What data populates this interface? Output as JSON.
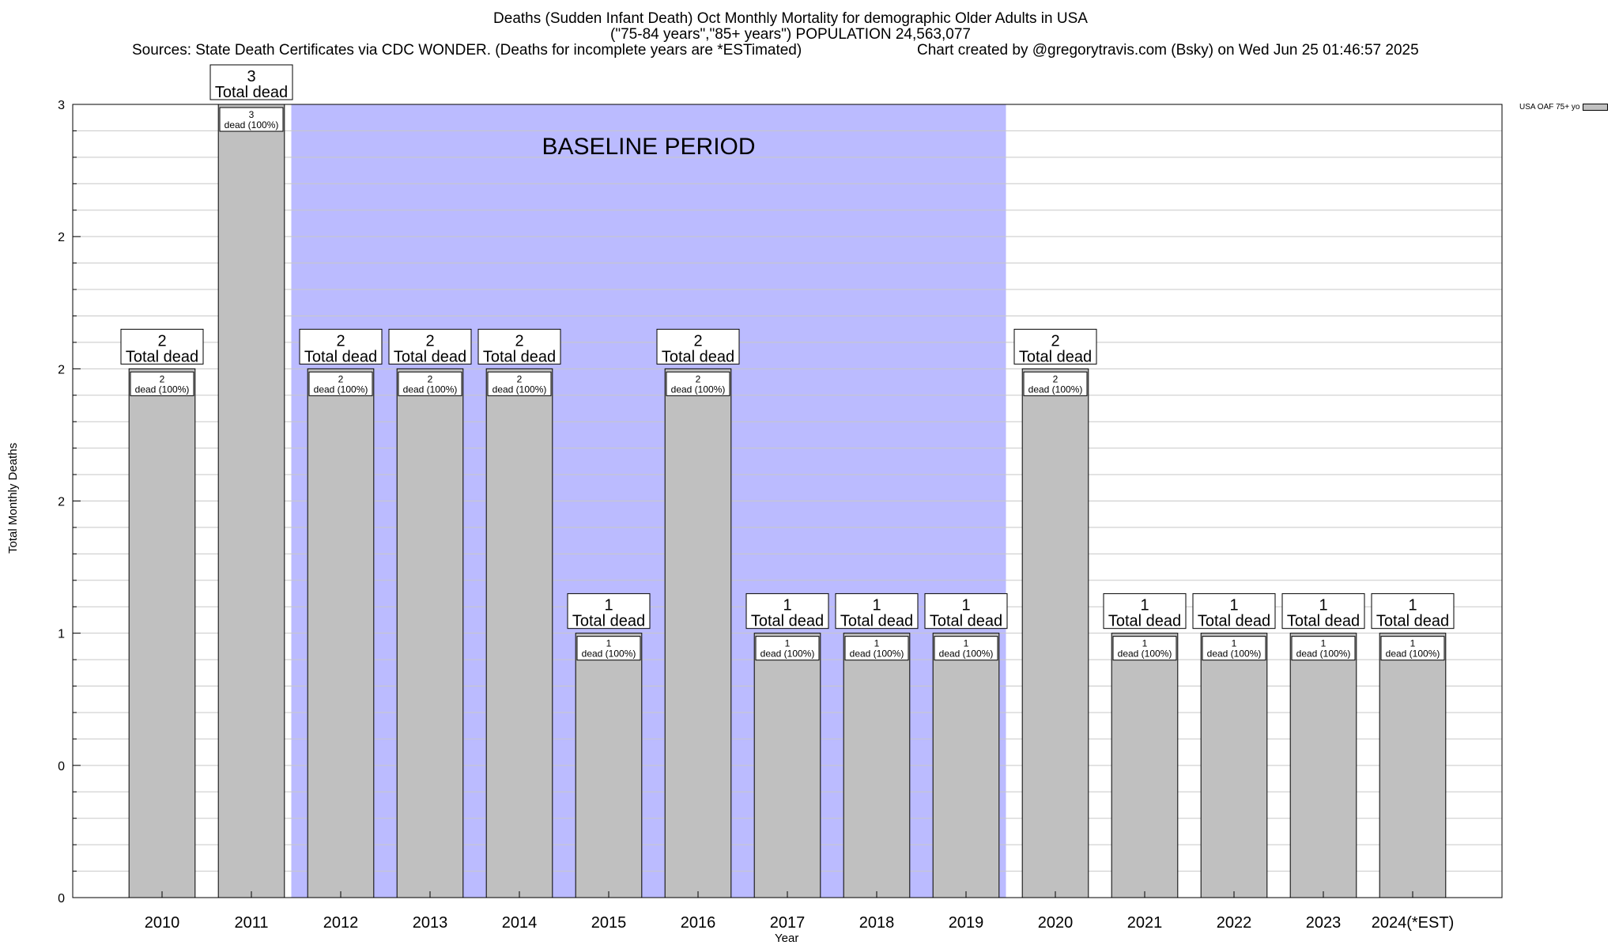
{
  "chart_data": {
    "type": "bar",
    "title_lines": [
      "Deaths (Sudden Infant Death) Oct Monthly Mortality for demographic Older Adults in USA",
      "(\"75-84 years\",\"85+ years\") POPULATION 24,563,077"
    ],
    "source_text": "Sources: State Death Certificates via CDC WONDER. (Deaths for incomplete years are *ESTimated)",
    "credit_text": "Chart created by @gregorytravis.com (Bsky) on Wed Jun 25 01:46:57 2025",
    "xlabel": "Year",
    "ylabel": "Total Monthly Deaths",
    "ylim": [
      0,
      3
    ],
    "y_tick_values": [
      0,
      0.5,
      1,
      1.5,
      2,
      2.5,
      3
    ],
    "y_tick_labels": [
      "0",
      "0",
      "1",
      "2",
      "2",
      "2",
      "3"
    ],
    "grid": true,
    "categories": [
      "2010",
      "2011",
      "2012",
      "2013",
      "2014",
      "2015",
      "2016",
      "2017",
      "2018",
      "2019",
      "2020",
      "2021",
      "2022",
      "2023",
      "2024(*EST)"
    ],
    "series": [
      {
        "name": "USA OAF 75+ yo",
        "values": [
          2,
          3,
          2,
          2,
          2,
          1,
          2,
          1,
          1,
          1,
          2,
          1,
          1,
          1,
          1
        ]
      }
    ],
    "top_labels": [
      "2\nTotal dead",
      "3\nTotal dead",
      "2\nTotal dead",
      "2\nTotal dead",
      "2\nTotal dead",
      "1\nTotal dead",
      "2\nTotal dead",
      "1\nTotal dead",
      "1\nTotal dead",
      "1\nTotal dead",
      "2\nTotal dead",
      "1\nTotal dead",
      "1\nTotal dead",
      "1\nTotal dead",
      "1\nTotal dead"
    ],
    "inner_labels": [
      "2\ndead (100%)",
      "3\ndead (100%)",
      "2\ndead (100%)",
      "2\ndead (100%)",
      "2\ndead (100%)",
      "1\ndead (100%)",
      "2\ndead (100%)",
      "1\ndead (100%)",
      "1\ndead (100%)",
      "1\ndead (100%)",
      "2\ndead (100%)",
      "1\ndead (100%)",
      "1\ndead (100%)",
      "1\ndead (100%)",
      "1\ndead (100%)"
    ],
    "baseline": {
      "label": "BASELINE PERIOD",
      "start": "2012",
      "end": "2019"
    },
    "legend_position": "top-right",
    "colors": {
      "bar": "#c0c0c0",
      "baseline": "#bbbbff",
      "grid": "#c8c8c8"
    }
  }
}
